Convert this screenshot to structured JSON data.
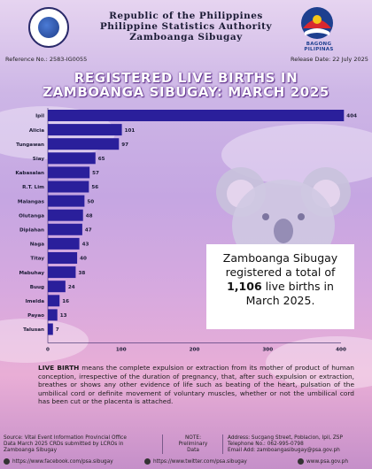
{
  "header": {
    "line1": "Republic of the Philippines",
    "line2": "Philippine Statistics Authority",
    "line3": "Zamboanga Sibugay",
    "right_logo_caption": "BAGONG PILIPINAS",
    "reference": "Reference No.: 2583-IG0055",
    "release_date": "Release Date: 22 July 2025"
  },
  "title_line1": "REGISTERED LIVE BIRTHS IN",
  "title_line2": "ZAMBOANGA SIBUGAY: MARCH 2025",
  "colors": {
    "bar": "#2a1f9b",
    "title_outline": "#5b2b88"
  },
  "chart_data": {
    "type": "bar",
    "orientation": "horizontal",
    "categories": [
      "Ipil",
      "Alicia",
      "Tungawan",
      "Siay",
      "Kabasalan",
      "R.T. Lim",
      "Malangas",
      "Olutanga",
      "Diplahan",
      "Naga",
      "Titay",
      "Mabuhay",
      "Buug",
      "Imelda",
      "Payao",
      "Talusan"
    ],
    "values": [
      404,
      101,
      97,
      65,
      57,
      56,
      50,
      48,
      47,
      43,
      40,
      38,
      24,
      16,
      13,
      7
    ],
    "xlim": [
      0,
      400
    ],
    "xticks": [
      "0",
      "100",
      "200",
      "300",
      "400"
    ],
    "title": "",
    "xlabel": "",
    "ylabel": ""
  },
  "callout": {
    "line1": "Zamboanga Sibugay",
    "line2": "registered a total of",
    "total": "1,106",
    "line3": " live births in",
    "line4": "March 2025."
  },
  "definition": {
    "term": "LIVE BIRTH",
    "text": " means the complete expulsion or extraction from its mother of product of human conception, irrespective of the duration of pregnancy, that, after such expulsion or extraction, breathes or shows any other evidence of life such as beating of the heart, pulsation of the umbilical cord or definite movement of voluntary muscles, whether or not the umbilical cord has been cut or the placenta is attached."
  },
  "footer": {
    "source_line1": "Source: Vital Event Information Provincial Office",
    "source_line2": "Data March 2025 CRDs submitted by LCROs in",
    "source_line3": "Zamboanga Sibugay",
    "note_line1": "NOTE:",
    "note_line2": "Preliminary",
    "note_line3": "Data",
    "address": "Address: Sucgang Street, Poblacion, Ipil, ZSP",
    "telephone": "Telephone No.: 062-995-0798",
    "email": "Email Add: zamboangasibugay@psa.gov.ph",
    "facebook": "https://www.facebook.com/psa.sibugay",
    "twitter": "https://www.twitter.com/psa.sibugay",
    "website": "www.psa.gov.ph"
  }
}
